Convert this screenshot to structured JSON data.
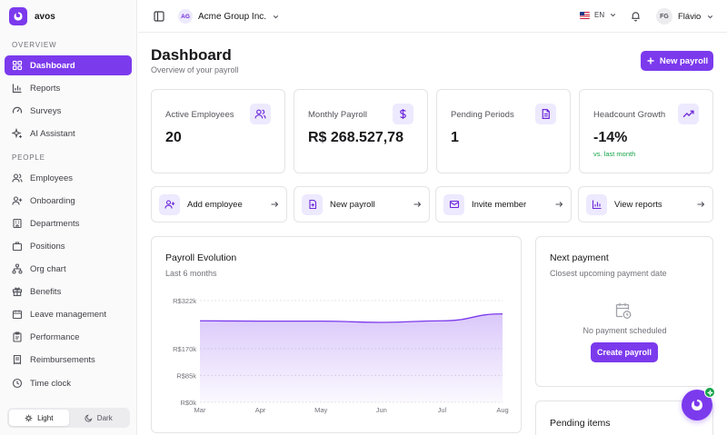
{
  "brand": {
    "name": "avos"
  },
  "sidebar": {
    "overview_label": "OVERVIEW",
    "overview_items": [
      {
        "label": "Dashboard",
        "icon": "layout-grid-icon",
        "active": true
      },
      {
        "label": "Reports",
        "icon": "bar-chart-icon"
      },
      {
        "label": "Surveys",
        "icon": "gauge-icon"
      },
      {
        "label": "AI Assistant",
        "icon": "sparkles-icon"
      }
    ],
    "people_label": "PEOPLE",
    "people_items": [
      {
        "label": "Employees",
        "icon": "users-icon"
      },
      {
        "label": "Onboarding",
        "icon": "user-plus-icon"
      },
      {
        "label": "Departments",
        "icon": "building-icon"
      },
      {
        "label": "Positions",
        "icon": "briefcase-icon"
      },
      {
        "label": "Org chart",
        "icon": "network-icon"
      },
      {
        "label": "Benefits",
        "icon": "gift-icon"
      },
      {
        "label": "Leave management",
        "icon": "calendar-icon"
      },
      {
        "label": "Performance",
        "icon": "clipboard-icon"
      },
      {
        "label": "Reimbursements",
        "icon": "receipt-icon"
      },
      {
        "label": "Time clock",
        "icon": "clock-icon"
      }
    ],
    "theme": {
      "light": "Light",
      "dark": "Dark",
      "selected": "light"
    }
  },
  "topbar": {
    "org_initials": "AG",
    "org_name": "Acme Group Inc.",
    "language": "EN",
    "user_initials": "FG",
    "user_name": "Flávio"
  },
  "header": {
    "title": "Dashboard",
    "subtitle": "Overview of your payroll",
    "new_payroll_label": "New payroll"
  },
  "stats": [
    {
      "label": "Active Employees",
      "value": "20",
      "icon": "users-icon"
    },
    {
      "label": "Monthly Payroll",
      "value": "R$ 268.527,78",
      "icon": "dollar-icon"
    },
    {
      "label": "Pending Periods",
      "value": "1",
      "icon": "file-text-icon"
    },
    {
      "label": "Headcount Growth",
      "value": "-14%",
      "note": "vs. last month",
      "icon": "trending-up-icon"
    }
  ],
  "actions": [
    {
      "label": "Add employee",
      "icon": "user-plus-icon"
    },
    {
      "label": "New payroll",
      "icon": "file-plus-icon"
    },
    {
      "label": "Invite member",
      "icon": "mail-icon"
    },
    {
      "label": "View reports",
      "icon": "bar-chart-icon"
    }
  ],
  "payroll_evolution": {
    "title": "Payroll Evolution",
    "subtitle": "Last 6 months"
  },
  "chart_data": {
    "type": "area",
    "title": "Payroll Evolution",
    "subtitle": "Last 6 months",
    "categories": [
      "Mar",
      "Apr",
      "May",
      "Jun",
      "Jul",
      "Aug"
    ],
    "series": [
      {
        "values": [
          258000,
          257000,
          257000,
          253000,
          258000,
          280000
        ]
      }
    ],
    "y_ticks": [
      {
        "value": 0,
        "label": "R$0k"
      },
      {
        "value": 85000,
        "label": "R$85k"
      },
      {
        "value": 170000,
        "label": "R$170k"
      },
      {
        "value": 322000,
        "label": "R$322k"
      }
    ],
    "ylim": [
      0,
      322000
    ],
    "grid": true,
    "color": "#7c3aed"
  },
  "next_payment": {
    "title": "Next payment",
    "subtitle": "Closest upcoming payment date",
    "empty_text": "No payment scheduled",
    "button_label": "Create payroll"
  },
  "pending_items": {
    "title": "Pending items"
  },
  "colors": {
    "accent": "#7c3aed",
    "accent_soft": "#ede9fe",
    "positive": "#16a34a"
  }
}
